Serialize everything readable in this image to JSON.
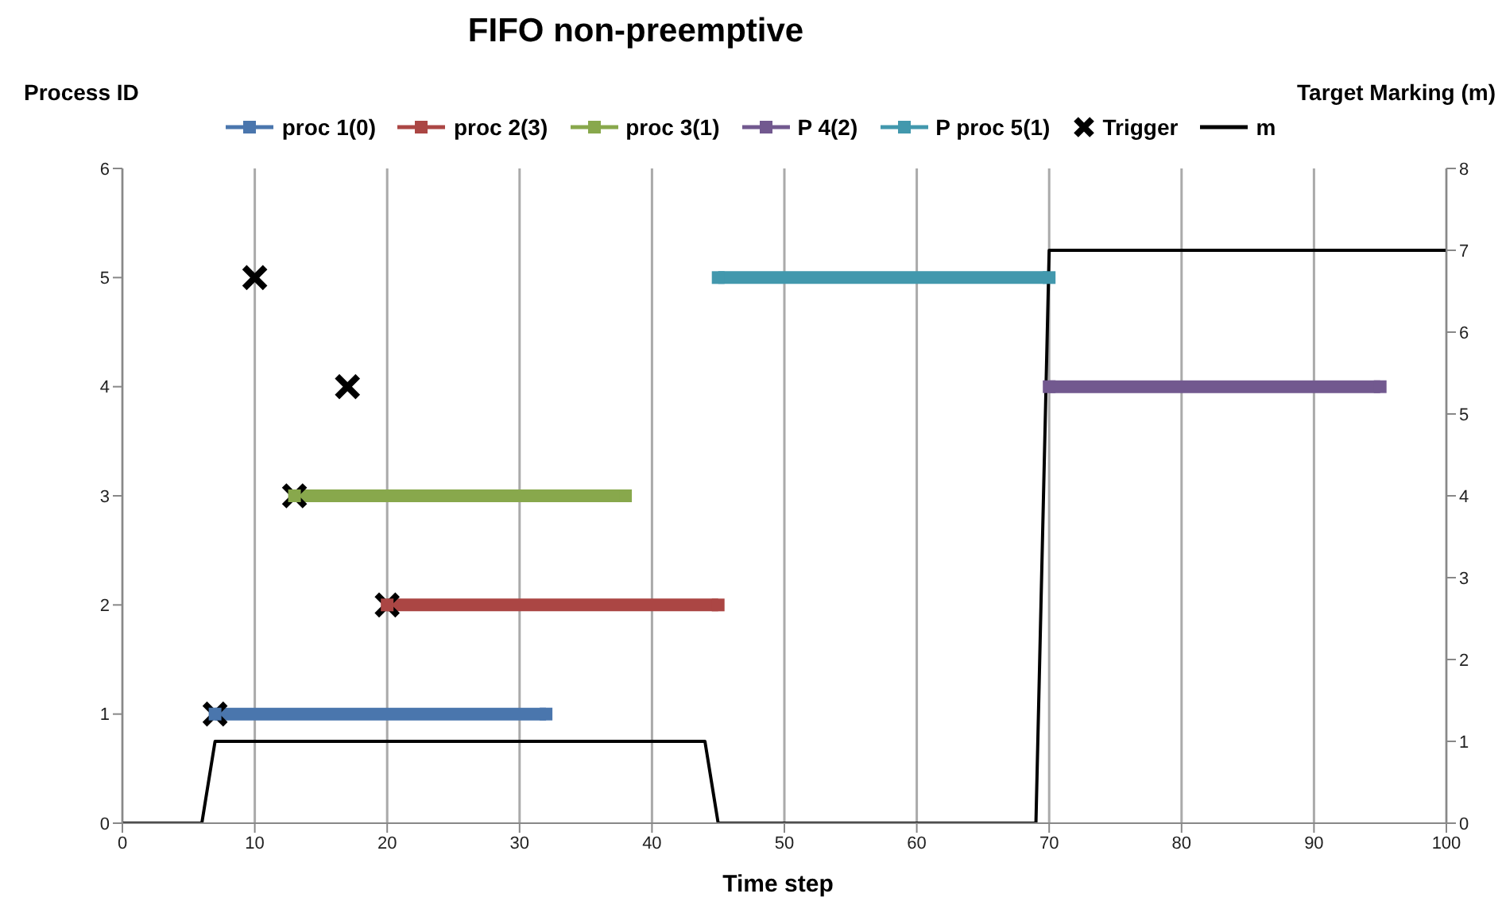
{
  "chart_data": {
    "type": "line",
    "title": "FIFO non-preemptive",
    "xlabel": "Time step",
    "ylabel": "Process ID",
    "y2label": "Target Marking (m)",
    "xlim": [
      0,
      100
    ],
    "xticks": [
      0,
      10,
      20,
      30,
      40,
      50,
      60,
      70,
      80,
      90,
      100
    ],
    "ylim": [
      0,
      6
    ],
    "yticks": [
      0,
      1,
      2,
      3,
      4,
      5,
      6
    ],
    "y2lim": [
      0,
      8
    ],
    "y2ticks": [
      0,
      1,
      2,
      3,
      4,
      5,
      6,
      7,
      8
    ],
    "grid": "x",
    "legend": "top",
    "line_style": "solid",
    "series": [
      {
        "name": "proc 1(0)",
        "color": "#4a76ad",
        "marker": "square",
        "x": [
          7,
          32
        ],
        "values": [
          1,
          1
        ]
      },
      {
        "name": "proc  2(3)",
        "color": "#ab4644",
        "marker": "square",
        "x": [
          20,
          45
        ],
        "values": [
          2,
          2
        ]
      },
      {
        "name": "proc  3(1)",
        "color": "#88a84c",
        "marker": "square",
        "x": [
          13,
          38
        ],
        "values": [
          3,
          3
        ]
      },
      {
        "name": "P 4(2)",
        "color": "#72598f",
        "marker": "square",
        "x": [
          70,
          95
        ],
        "values": [
          4,
          4
        ]
      },
      {
        "name": "P proc 5(1)",
        "color": "#4298ad",
        "marker": "square",
        "x": [
          45,
          70
        ],
        "values": [
          5,
          5
        ]
      },
      {
        "name": "Trigger",
        "color": "#000000",
        "type": "scatter",
        "marker": "cross",
        "x": [
          7,
          10,
          17,
          13,
          20
        ],
        "values": [
          1,
          5,
          4,
          3,
          2
        ]
      },
      {
        "name": "m",
        "color": "#000000",
        "marker": "none",
        "axis": "y2",
        "x": [
          0,
          6,
          7,
          44,
          45,
          69,
          70,
          100
        ],
        "values": [
          0,
          0,
          1,
          1,
          0,
          0,
          7,
          7
        ]
      }
    ]
  }
}
